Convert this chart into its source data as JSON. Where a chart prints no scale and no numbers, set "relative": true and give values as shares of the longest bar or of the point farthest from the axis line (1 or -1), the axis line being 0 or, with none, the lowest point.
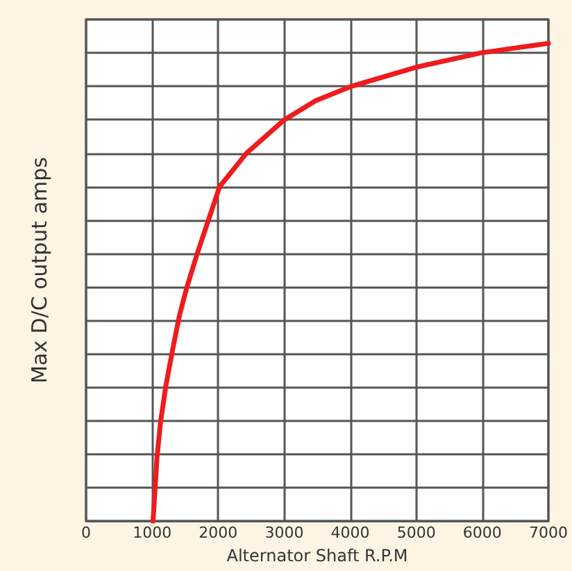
{
  "chart_data": {
    "type": "line",
    "xlabel": "Alternator Shaft R.P.M",
    "ylabel": "Max D/C output amps",
    "relative": true,
    "x": [
      1014,
      1075,
      1130,
      1210,
      1312,
      1413,
      1527,
      1683,
      1852,
      2022,
      2428,
      3002,
      3475,
      4016,
      4996,
      5977,
      7000
    ],
    "series": [
      {
        "color": "#ee1c1c",
        "values": [
          0,
          0.135,
          0.21,
          0.285,
          0.36,
          0.43,
          0.49,
          0.56,
          0.63,
          0.7,
          0.77,
          0.84,
          0.88,
          0.91,
          0.95,
          0.98,
          1
        ]
      }
    ],
    "xlim": [
      0,
      7000
    ],
    "xticks": [
      0,
      1000,
      2000,
      3000,
      4000,
      5000,
      6000,
      7000
    ],
    "grid": true,
    "marker": "none",
    "line_style": "solid"
  }
}
